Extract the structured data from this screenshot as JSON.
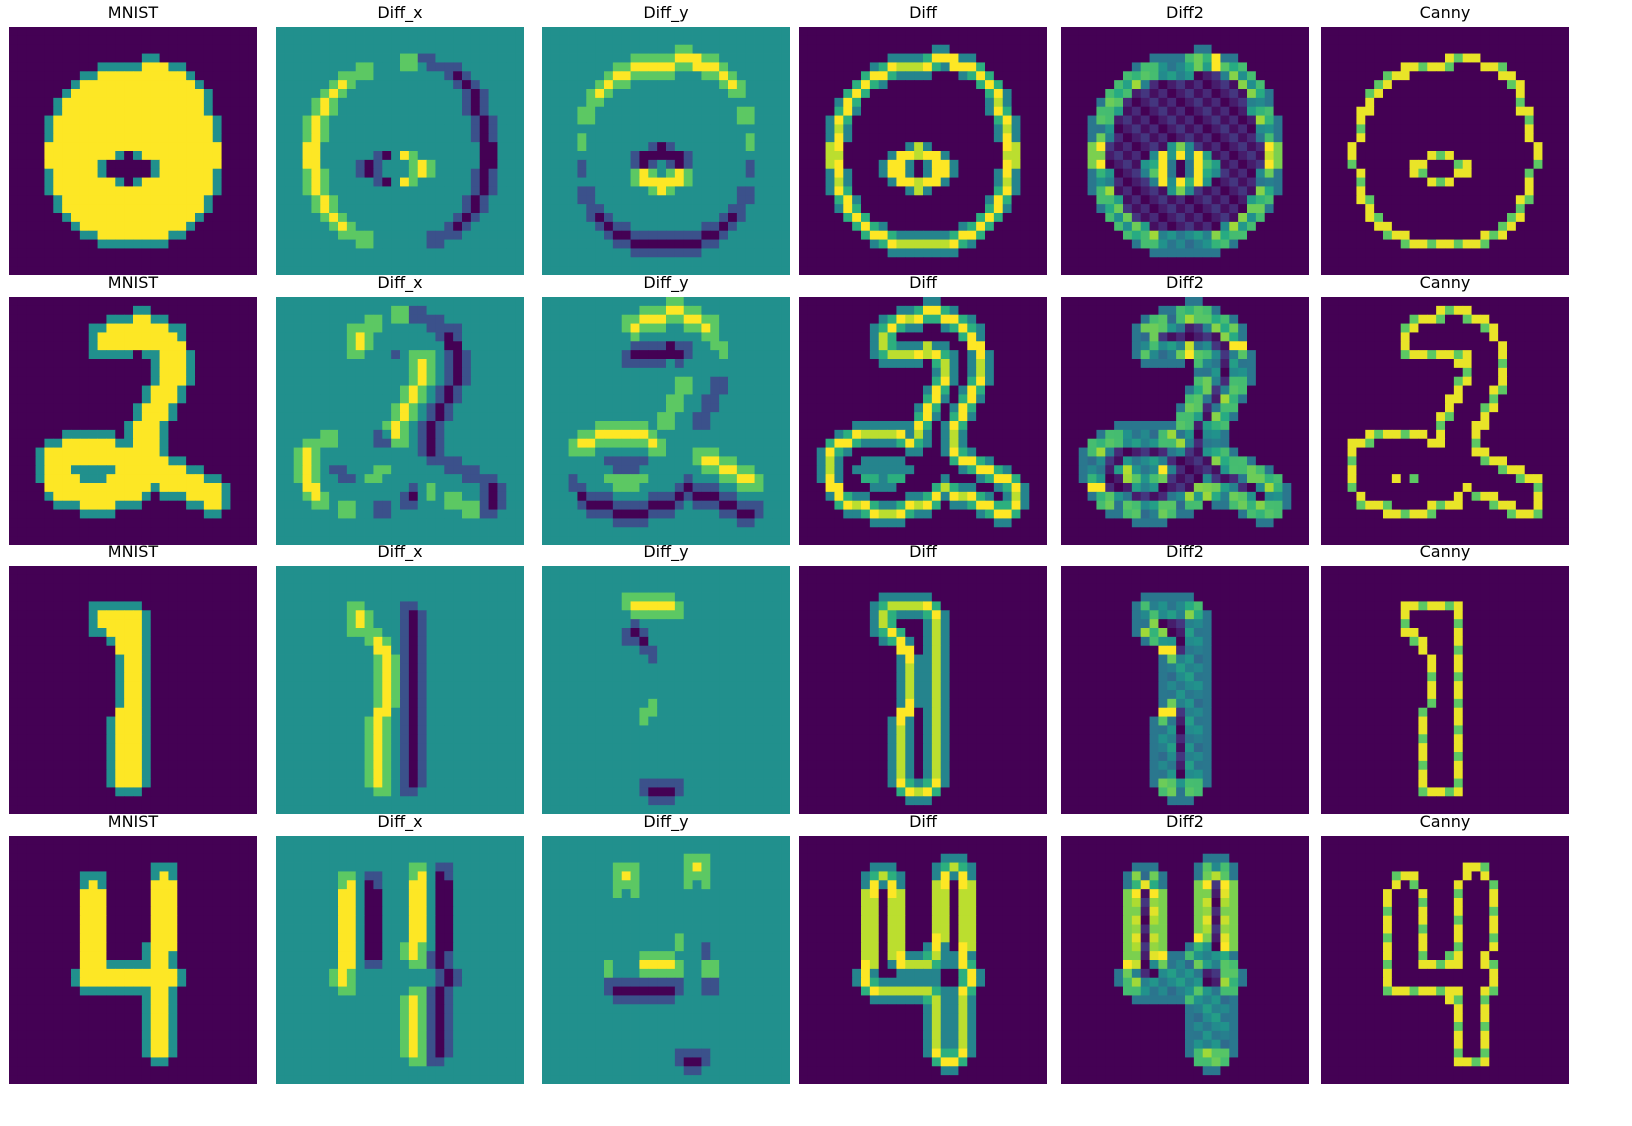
{
  "figure": {
    "rows": [
      {
        "digit": "0",
        "panels": [
          "MNIST",
          "Diff_x",
          "Diff_y",
          "Diff",
          "Diff2",
          "Canny"
        ]
      },
      {
        "digit": "2",
        "panels": [
          "MNIST",
          "Diff_x",
          "Diff_y",
          "Diff",
          "Diff2",
          "Canny"
        ]
      },
      {
        "digit": "1",
        "panels": [
          "MNIST",
          "Diff_x",
          "Diff_y",
          "Diff",
          "Diff2",
          "Canny"
        ]
      },
      {
        "digit": "4",
        "panels": [
          "MNIST",
          "Diff_x",
          "Diff_y",
          "Diff",
          "Diff2",
          "Canny"
        ]
      }
    ],
    "colormap": "viridis",
    "colors": {
      "viridis_low": "#440154",
      "viridis_mid": "#21918c",
      "viridis_high": "#fde725",
      "viridis_quarter": "#3b528b",
      "viridis_three_quarter": "#5ec962"
    }
  }
}
